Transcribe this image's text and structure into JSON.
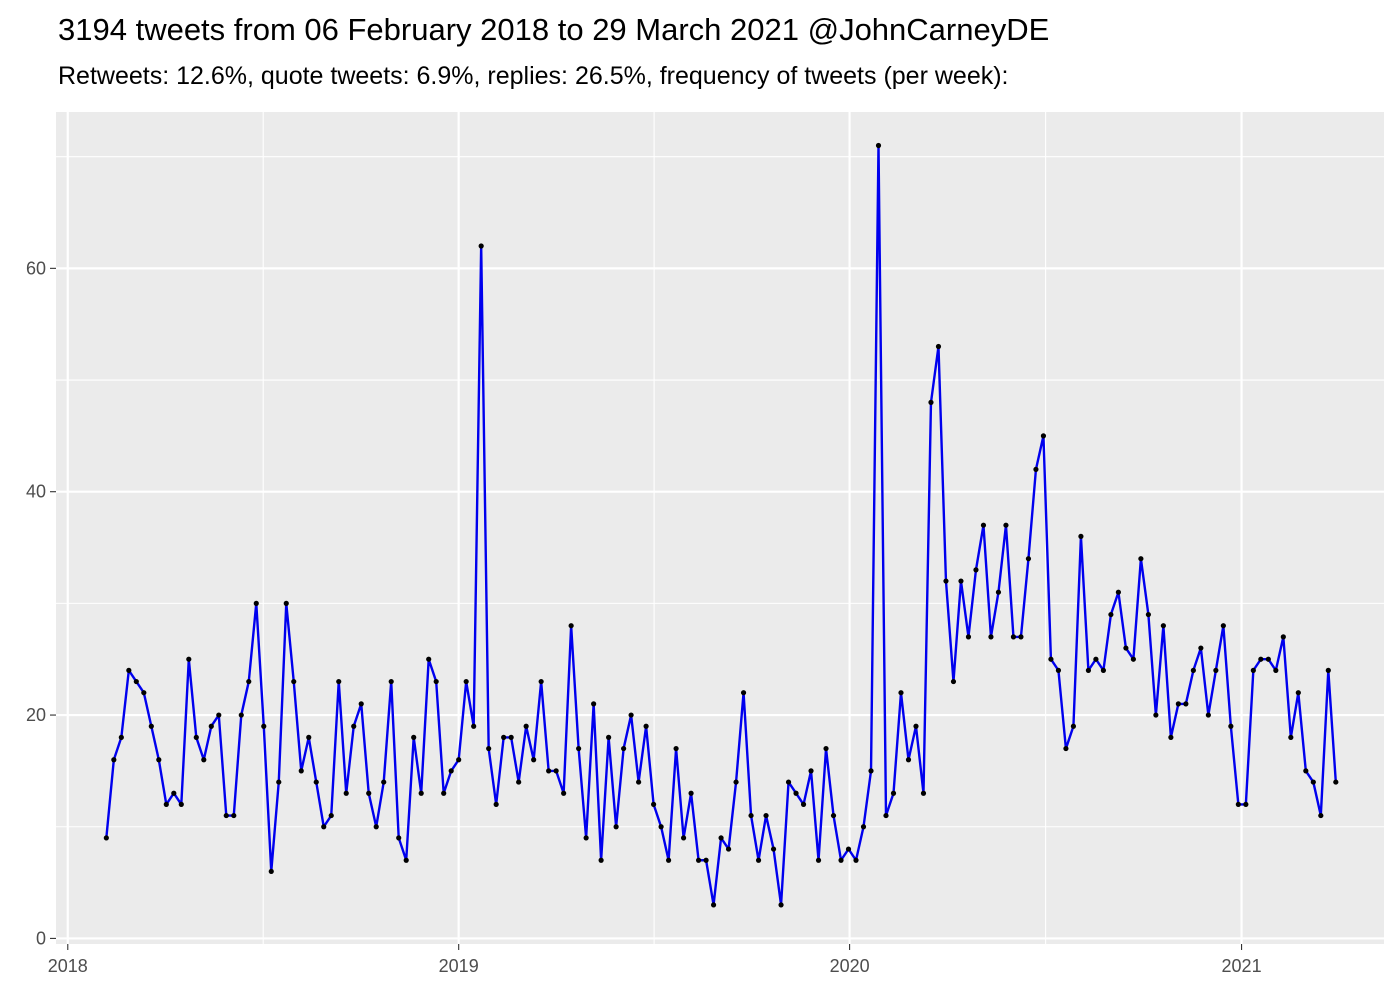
{
  "chart_data": {
    "type": "line",
    "title": "3194 tweets from 06 February 2018 to 29 March 2021 @JohnCarneyDE",
    "subtitle": "Retweets: 12.6%, quote tweets: 6.9%, replies: 26.5%, frequency of tweets (per week):",
    "xlabel": "",
    "ylabel": "",
    "x_ticks": [
      "2018",
      "2019",
      "2020",
      "2021"
    ],
    "y_ticks": [
      0,
      20,
      40,
      60
    ],
    "xlim": [
      "2017-12-21",
      "2021-05-14"
    ],
    "ylim": [
      -0.5,
      74
    ],
    "grid": true,
    "line_color": "#0000ee",
    "point_color": "#000000",
    "panel_background": "#ebebeb",
    "series": [
      {
        "start_date": "2018-02-06",
        "interval": "week",
        "values": [
          9,
          16,
          18,
          24,
          23,
          22,
          19,
          16,
          12,
          13,
          12,
          25,
          18,
          16,
          19,
          20,
          11,
          11,
          20,
          23,
          30,
          19,
          6,
          14,
          30,
          23,
          15,
          18,
          14,
          10,
          11,
          23,
          13,
          19,
          21,
          13,
          10,
          14,
          23,
          9,
          7,
          18,
          13,
          25,
          23,
          13,
          15,
          16,
          23,
          19,
          62,
          17,
          12,
          18,
          18,
          14,
          19,
          16,
          23,
          15,
          15,
          13,
          28,
          17,
          9,
          21,
          7,
          18,
          10,
          17,
          20,
          14,
          19,
          12,
          10,
          7,
          17,
          9,
          13,
          7,
          7,
          3,
          9,
          8,
          14,
          22,
          11,
          7,
          11,
          8,
          3,
          14,
          13,
          12,
          15,
          7,
          17,
          11,
          7,
          8,
          7,
          10,
          15,
          71,
          11,
          13,
          22,
          16,
          19,
          13,
          48,
          53,
          32,
          23,
          32,
          27,
          33,
          37,
          27,
          31,
          37,
          27,
          27,
          34,
          42,
          45,
          25,
          24,
          17,
          19,
          36,
          24,
          25,
          24,
          29,
          31,
          26,
          25,
          34,
          29,
          20,
          28,
          18,
          21,
          21,
          24,
          26,
          20,
          24,
          28,
          19,
          12,
          12,
          24,
          25,
          25,
          24,
          27,
          18,
          22,
          15,
          14,
          11,
          24,
          14
        ]
      }
    ]
  }
}
